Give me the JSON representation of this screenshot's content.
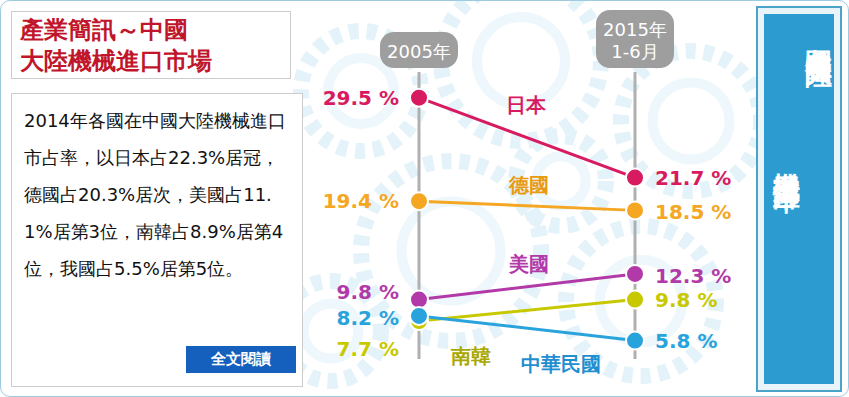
{
  "header": {
    "title": "產業簡訊～中國\n大陸機械進口市場"
  },
  "summary": {
    "text": "2014年各國在中國大陸機械進口市占率，以日本占22.3%居冠，德國占20.3%居次，美國占11.1%居第3位，南韓占8.9%居第4位，我國占5.5%居第5位。",
    "button": "全文閱讀"
  },
  "chart_data": {
    "type": "line",
    "title": "各國在中國大陸\n機械進口市占率",
    "categories": [
      "2005年",
      "2015年\n1-6月"
    ],
    "ylim": [
      4,
      32
    ],
    "tick_labels": "x",
    "data_labels": true,
    "marker": "circle",
    "series": [
      {
        "name": "日本",
        "color": "#d81b60",
        "values": [
          29.5,
          21.7
        ],
        "value_labels": [
          "29.5 %",
          "21.7 %"
        ]
      },
      {
        "name": "德國",
        "color": "#f5a623",
        "values": [
          19.4,
          18.5
        ],
        "value_labels": [
          "19.4 %",
          "18.5 %"
        ]
      },
      {
        "name": "美國",
        "color": "#b23aa8",
        "values": [
          9.8,
          12.3
        ],
        "value_labels": [
          "9.8 %",
          "12.3 %"
        ]
      },
      {
        "name": "南韓",
        "color": "#c8c800",
        "values": [
          7.7,
          9.8
        ],
        "value_labels": [
          "7.7 %",
          "9.8 %"
        ]
      },
      {
        "name": "中華民國",
        "color": "#29a3dc",
        "values": [
          8.2,
          5.8
        ],
        "value_labels": [
          "8.2 %",
          "5.8 %"
        ]
      }
    ]
  }
}
